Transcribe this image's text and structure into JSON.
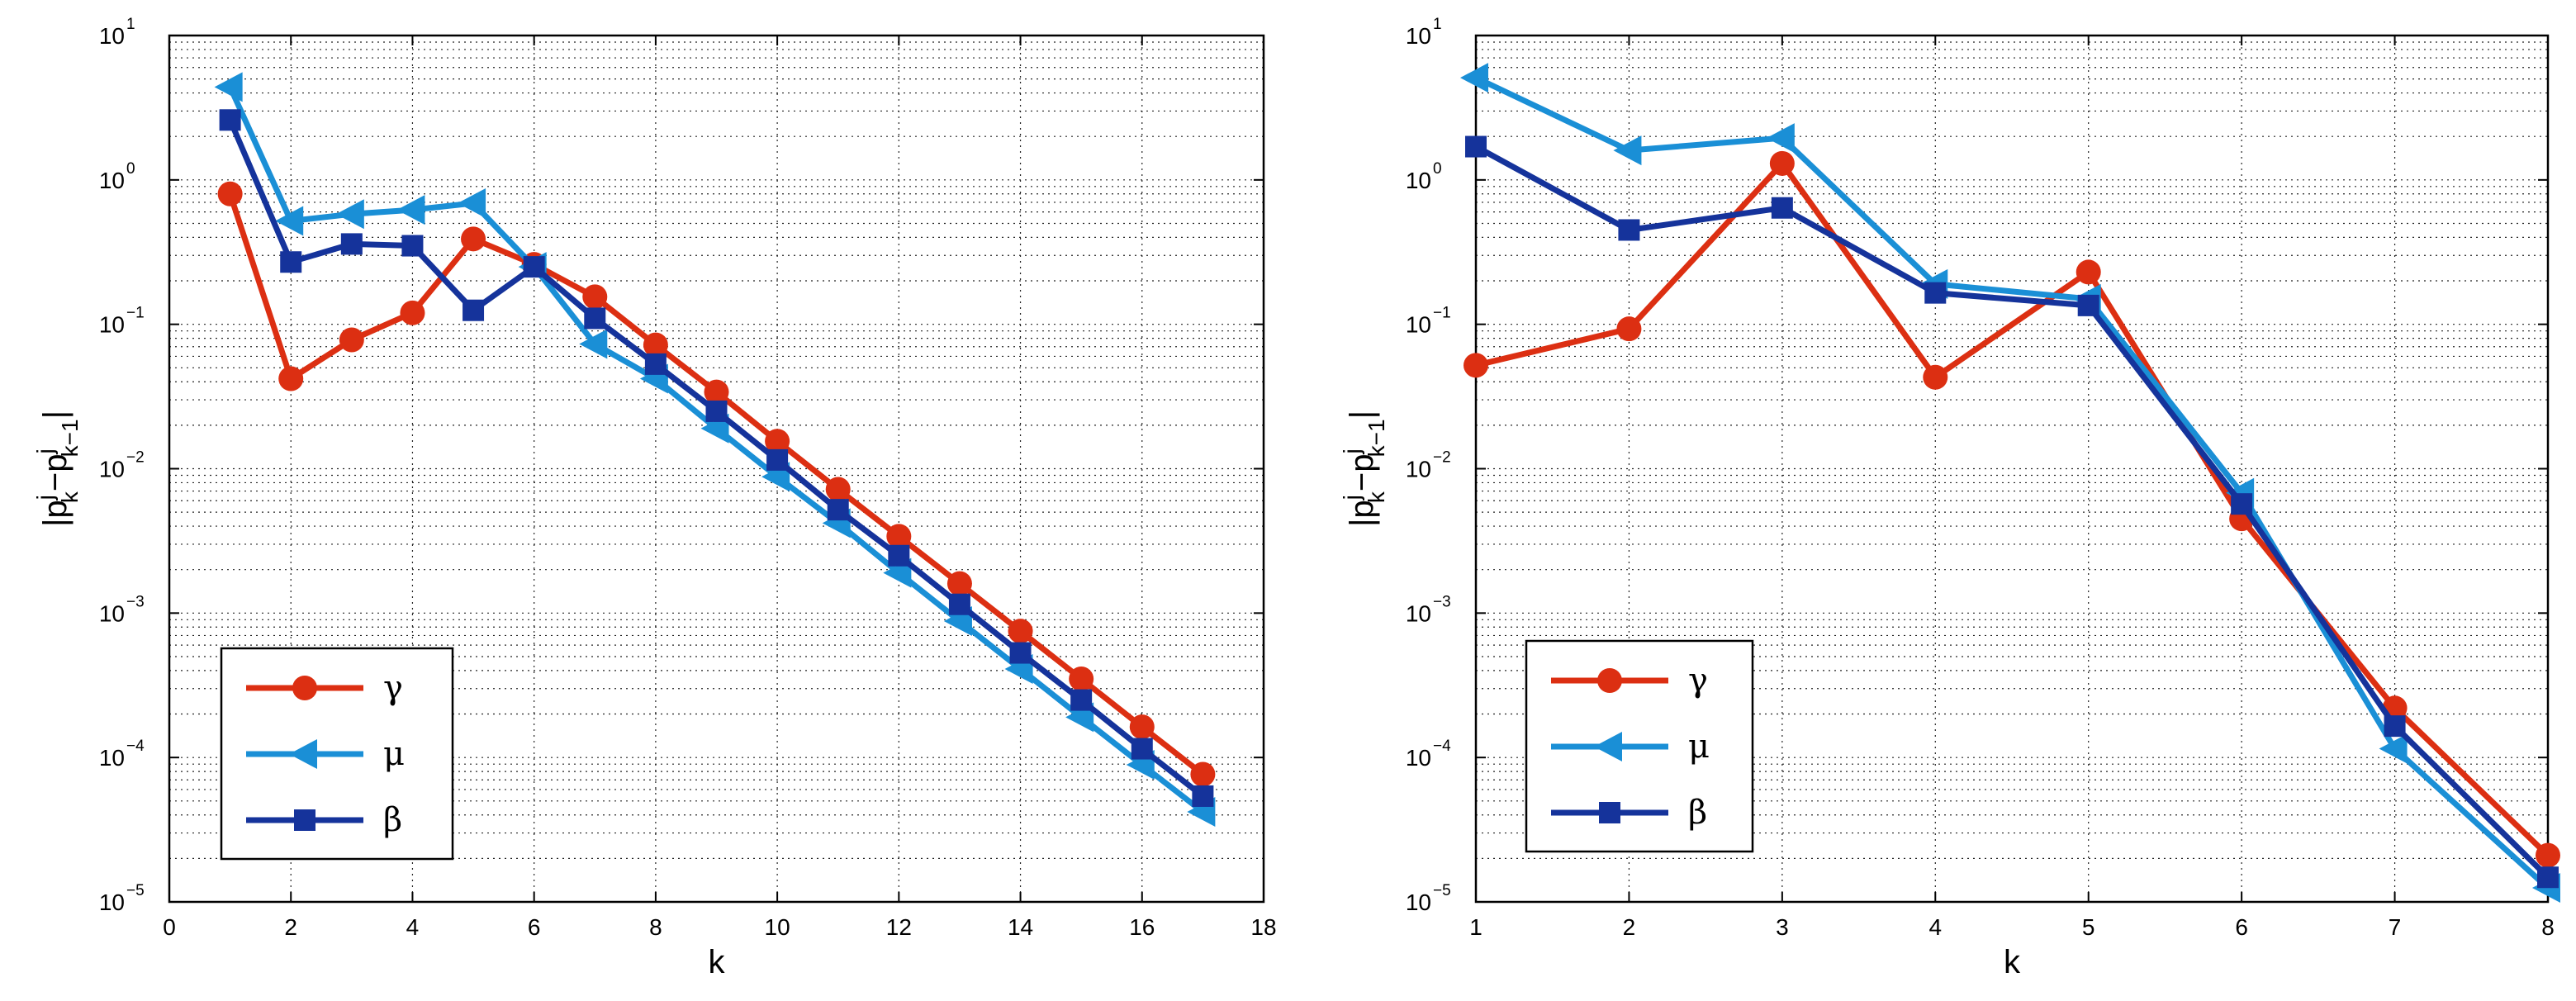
{
  "chart_data": [
    {
      "type": "line",
      "title": "",
      "xlabel": "k",
      "ylabel": {
        "base": "|p",
        "sup1": "j",
        "sub1": "k",
        "mid": "−p",
        "sup2": "j",
        "sub2": "k−1",
        "end": "|"
      },
      "yscale": "log",
      "xlim": [
        0,
        18
      ],
      "ylim": [
        1e-05,
        10
      ],
      "xticks": [
        0,
        2,
        4,
        6,
        8,
        10,
        12,
        14,
        16,
        18
      ],
      "yticks": [
        {
          "value": 1e-05,
          "base": "10",
          "exp": "−5"
        },
        {
          "value": 0.0001,
          "base": "10",
          "exp": "−4"
        },
        {
          "value": 0.001,
          "base": "10",
          "exp": "−3"
        },
        {
          "value": 0.01,
          "base": "10",
          "exp": "−2"
        },
        {
          "value": 0.1,
          "base": "10",
          "exp": "−1"
        },
        {
          "value": 1,
          "base": "10",
          "exp": "0"
        },
        {
          "value": 10,
          "base": "10",
          "exp": "1"
        }
      ],
      "grid": true,
      "legend_position": "bottom-left",
      "series": [
        {
          "name": "γ",
          "color": "#dc2f12",
          "marker": "circle",
          "x": [
            1,
            2,
            3,
            4,
            5,
            6,
            7,
            8,
            9,
            10,
            11,
            12,
            13,
            14,
            15,
            16,
            17
          ],
          "values": [
            0.8,
            0.042,
            0.078,
            0.12,
            0.39,
            0.26,
            0.155,
            0.072,
            0.034,
            0.0155,
            0.0072,
            0.0034,
            0.0016,
            0.00075,
            0.00035,
            0.000163,
            7.65e-05
          ]
        },
        {
          "name": "μ",
          "color": "#1a8fd6",
          "marker": "triangle-left",
          "x": [
            1,
            2,
            3,
            4,
            5,
            6,
            7,
            8,
            9,
            10,
            11,
            12,
            13,
            14,
            15,
            16,
            17
          ],
          "values": [
            4.4,
            0.52,
            0.58,
            0.62,
            0.69,
            0.25,
            0.073,
            0.042,
            0.019,
            0.0088,
            0.0042,
            0.0019,
            0.00088,
            0.00041,
            0.00019,
            8.9e-05,
            4.2e-05
          ]
        },
        {
          "name": "β",
          "color": "#15339b",
          "marker": "square",
          "x": [
            1,
            2,
            3,
            4,
            5,
            6,
            7,
            8,
            9,
            10,
            11,
            12,
            13,
            14,
            15,
            16,
            17
          ],
          "values": [
            2.6,
            0.27,
            0.36,
            0.35,
            0.125,
            0.25,
            0.11,
            0.053,
            0.025,
            0.0115,
            0.0052,
            0.0025,
            0.00115,
            0.00053,
            0.00025,
            0.000115,
            5.4e-05
          ]
        }
      ]
    },
    {
      "type": "line",
      "title": "",
      "xlabel": "k",
      "ylabel": {
        "base": "|p",
        "sup1": "j",
        "sub1": "k",
        "mid": "−p",
        "sup2": "j",
        "sub2": "k−1",
        "end": "|"
      },
      "yscale": "log",
      "xlim": [
        1,
        8
      ],
      "ylim": [
        1e-05,
        10
      ],
      "xticks": [
        1,
        2,
        3,
        4,
        5,
        6,
        7,
        8
      ],
      "yticks": [
        {
          "value": 1e-05,
          "base": "10",
          "exp": "−5"
        },
        {
          "value": 0.0001,
          "base": "10",
          "exp": "−4"
        },
        {
          "value": 0.001,
          "base": "10",
          "exp": "−3"
        },
        {
          "value": 0.01,
          "base": "10",
          "exp": "−2"
        },
        {
          "value": 0.1,
          "base": "10",
          "exp": "−1"
        },
        {
          "value": 1,
          "base": "10",
          "exp": "0"
        },
        {
          "value": 10,
          "base": "10",
          "exp": "1"
        }
      ],
      "grid": true,
      "legend_position": "bottom-left",
      "series": [
        {
          "name": "γ",
          "color": "#dc2f12",
          "marker": "circle",
          "x": [
            1,
            2,
            3,
            4,
            5,
            6,
            7,
            8
          ],
          "values": [
            0.052,
            0.093,
            1.3,
            0.043,
            0.23,
            0.0045,
            0.00022,
            2.1e-05
          ]
        },
        {
          "name": "μ",
          "color": "#1a8fd6",
          "marker": "triangle-left",
          "x": [
            1,
            2,
            3,
            4,
            5,
            6,
            7,
            8
          ],
          "values": [
            5.1,
            1.6,
            1.95,
            0.19,
            0.15,
            0.0068,
            0.000115,
            1.25e-05
          ]
        },
        {
          "name": "β",
          "color": "#15339b",
          "marker": "square",
          "x": [
            1,
            2,
            3,
            4,
            5,
            6,
            7,
            8
          ],
          "values": [
            1.7,
            0.45,
            0.64,
            0.165,
            0.135,
            0.0057,
            0.000165,
            1.48e-05
          ]
        }
      ]
    }
  ]
}
